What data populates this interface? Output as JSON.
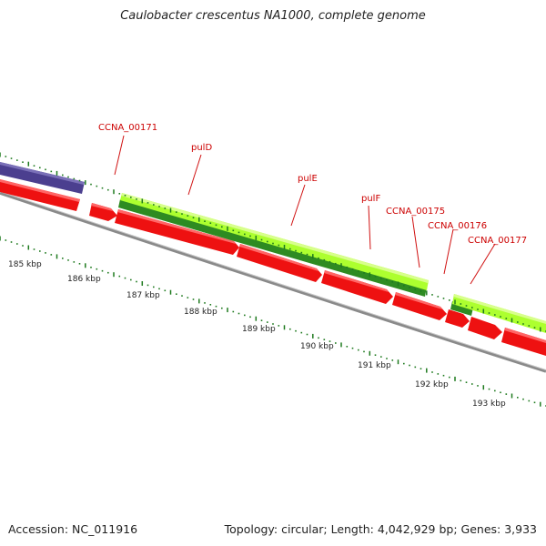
{
  "title": "Caulobacter crescentus NA1000, complete genome",
  "footer": {
    "accession": "Accession: NC_011916",
    "summary": "Topology: circular; Length: 4,042,929 bp; Genes: 3,933"
  },
  "colors": {
    "forward_cds": "#ADFF2F",
    "forward_cds_dark": "#2E8B22",
    "reverse_cds": "#EE1111",
    "other_feature": "#4B3F8F",
    "backbone": "#888888",
    "tick_minor": "#1E7A1E",
    "label_text": "#CC0000",
    "scale_text": "#222222"
  },
  "genes": [
    {
      "name": "CCNA_00171",
      "strand": "reverse"
    },
    {
      "name": "pulD",
      "strand": "forward"
    },
    {
      "name": "pulE",
      "strand": "forward"
    },
    {
      "name": "pulF",
      "strand": "forward"
    },
    {
      "name": "CCNA_00175",
      "strand": "forward"
    },
    {
      "name": "CCNA_00176",
      "strand": "reverse"
    },
    {
      "name": "CCNA_00177",
      "strand": "forward"
    }
  ],
  "scale_labels": [
    "185 kbp",
    "186 kbp",
    "187 kbp",
    "188 kbp",
    "189 kbp",
    "190 kbp",
    "191 kbp",
    "192 kbp",
    "193 kbp"
  ]
}
